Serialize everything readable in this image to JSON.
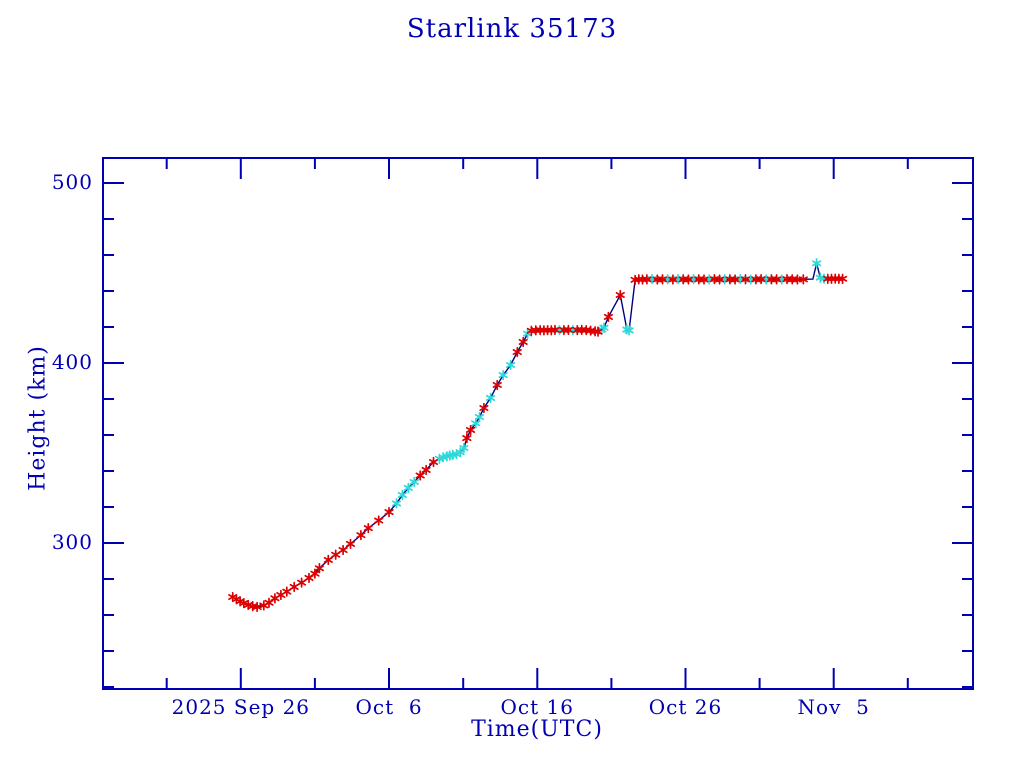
{
  "chart_data": {
    "type": "line",
    "title": "Starlink 35173",
    "xlabel": "Time(UTC)",
    "ylabel": "Height (km)",
    "grid": false,
    "legend": "none",
    "x_axis": {
      "unit": "days after 2025 Sep 26 (UTC)",
      "lim": [
        -9.3,
        49.4
      ],
      "major_ticks": [
        {
          "t": 0,
          "label": "2025 Sep 26"
        },
        {
          "t": 10,
          "label": "Oct  6"
        },
        {
          "t": 20,
          "label": "Oct 16"
        },
        {
          "t": 30,
          "label": "Oct 26"
        },
        {
          "t": 40,
          "label": "Nov  5"
        }
      ],
      "minor_ticks": [
        -5,
        5,
        15,
        25,
        35,
        45
      ]
    },
    "y_axis": {
      "unit": "km",
      "lim": [
        218.9,
        513.9
      ],
      "major_ticks": [
        {
          "v": 300,
          "label": "300"
        },
        {
          "v": 400,
          "label": "400"
        },
        {
          "v": 500,
          "label": "500"
        }
      ],
      "minor_ticks": [
        220,
        240,
        260,
        280,
        320,
        340,
        360,
        380,
        420,
        440,
        460,
        480
      ]
    },
    "style": {
      "axis_color": "#0000b2",
      "text_color": "#0000b2",
      "line_color": "#000080",
      "marker_colors": {
        "r": "#dd0000",
        "c": "#2fd8d8"
      },
      "marker": "asterisk",
      "background": "#ffffff"
    },
    "series": [
      {
        "name": "height",
        "points": [
          [
            -0.55,
            270.0,
            "r"
          ],
          [
            -0.3,
            268.8,
            "r"
          ],
          [
            -0.05,
            267.6,
            "r"
          ],
          [
            0.2,
            266.6,
            "r"
          ],
          [
            0.5,
            265.6,
            "r"
          ],
          [
            0.8,
            264.9,
            "r"
          ],
          [
            1.1,
            264.5,
            "r"
          ],
          [
            1.55,
            265.3,
            "r"
          ],
          [
            1.9,
            266.8,
            "r"
          ],
          [
            2.3,
            269.3,
            "r"
          ],
          [
            2.7,
            271.1,
            "r"
          ],
          [
            3.1,
            273.0,
            "r"
          ],
          [
            3.6,
            275.6,
            "r"
          ],
          [
            4.1,
            278.0,
            "r"
          ],
          [
            4.6,
            280.6,
            "r"
          ],
          [
            5.0,
            283.0,
            "r"
          ],
          [
            5.3,
            286.0,
            "r"
          ],
          [
            5.9,
            290.6,
            "r"
          ],
          [
            6.4,
            293.5,
            "r"
          ],
          [
            6.9,
            296.1,
            "r"
          ],
          [
            7.4,
            299.5,
            "r"
          ],
          [
            8.1,
            304.4,
            "r"
          ],
          [
            8.6,
            308.3,
            "r"
          ],
          [
            9.3,
            312.5,
            "r"
          ],
          [
            10.0,
            317.2,
            "r"
          ],
          [
            10.5,
            322.0,
            "c"
          ],
          [
            10.9,
            326.7,
            "c"
          ],
          [
            11.3,
            330.6,
            "c"
          ],
          [
            11.7,
            333.9,
            "c"
          ],
          [
            12.1,
            337.5,
            "r"
          ],
          [
            12.5,
            340.6,
            "r"
          ],
          [
            13.0,
            345.0,
            "r"
          ],
          [
            13.4,
            346.8,
            "c"
          ],
          [
            13.65,
            347.6,
            "c"
          ],
          [
            13.9,
            348.2,
            "c"
          ],
          [
            14.1,
            348.6,
            "c"
          ],
          [
            14.3,
            349.0,
            "c"
          ],
          [
            14.55,
            349.4,
            "c"
          ],
          [
            14.8,
            350.4,
            "c"
          ],
          [
            15.05,
            352.8,
            "c"
          ],
          [
            15.25,
            358.3,
            "r"
          ],
          [
            15.5,
            362.8,
            "r"
          ],
          [
            15.85,
            366.5,
            "c"
          ],
          [
            16.1,
            370.0,
            "c"
          ],
          [
            16.4,
            375.0,
            "r"
          ],
          [
            16.85,
            380.6,
            "c"
          ],
          [
            17.3,
            387.8,
            "r"
          ],
          [
            17.7,
            393.3,
            "c"
          ],
          [
            18.2,
            398.9,
            "c"
          ],
          [
            18.65,
            406.1,
            "r"
          ],
          [
            19.05,
            411.7,
            "r"
          ],
          [
            19.35,
            416.3,
            "c"
          ],
          [
            19.6,
            417.9,
            "r"
          ],
          [
            19.9,
            418.2,
            "r"
          ],
          [
            20.2,
            418.3,
            "r"
          ],
          [
            20.45,
            418.2,
            "r"
          ],
          [
            20.7,
            418.3,
            "r"
          ],
          [
            20.95,
            418.2,
            "r"
          ],
          [
            21.2,
            418.4,
            "r"
          ],
          [
            21.5,
            418.3,
            "c"
          ],
          [
            21.8,
            418.3,
            "r"
          ],
          [
            22.1,
            418.4,
            "r"
          ],
          [
            22.4,
            418.3,
            "c"
          ],
          [
            22.7,
            418.3,
            "r"
          ],
          [
            23.0,
            418.4,
            "r"
          ],
          [
            23.3,
            418.3,
            "r"
          ],
          [
            23.6,
            418.0,
            "r"
          ],
          [
            23.9,
            417.6,
            "r"
          ],
          [
            24.1,
            417.4,
            "r"
          ],
          [
            24.35,
            418.6,
            "c"
          ],
          [
            24.5,
            419.6,
            "c"
          ],
          [
            24.8,
            425.6,
            "r"
          ],
          [
            25.6,
            437.8,
            "r"
          ],
          [
            26.05,
            418.6,
            "c"
          ],
          [
            26.2,
            418.1,
            "c"
          ],
          [
            26.6,
            446.2,
            "r"
          ],
          [
            26.85,
            446.5,
            "r"
          ],
          [
            27.1,
            446.4,
            "r"
          ],
          [
            27.4,
            446.5,
            "r"
          ],
          [
            27.75,
            446.6,
            "c"
          ],
          [
            28.1,
            446.4,
            "r"
          ],
          [
            28.45,
            446.5,
            "r"
          ],
          [
            28.8,
            446.5,
            "c"
          ],
          [
            29.15,
            446.4,
            "r"
          ],
          [
            29.5,
            446.6,
            "c"
          ],
          [
            29.85,
            446.5,
            "r"
          ],
          [
            30.2,
            446.4,
            "r"
          ],
          [
            30.55,
            446.6,
            "c"
          ],
          [
            30.9,
            446.5,
            "r"
          ],
          [
            31.25,
            446.4,
            "r"
          ],
          [
            31.6,
            446.5,
            "c"
          ],
          [
            31.95,
            446.6,
            "r"
          ],
          [
            32.3,
            446.4,
            "r"
          ],
          [
            32.65,
            446.5,
            "c"
          ],
          [
            33.0,
            446.5,
            "r"
          ],
          [
            33.35,
            446.4,
            "r"
          ],
          [
            33.7,
            446.6,
            "c"
          ],
          [
            34.05,
            446.5,
            "r"
          ],
          [
            34.4,
            446.4,
            "c"
          ],
          [
            34.75,
            446.5,
            "r"
          ],
          [
            35.1,
            446.6,
            "r"
          ],
          [
            35.45,
            446.4,
            "c"
          ],
          [
            35.8,
            446.5,
            "r"
          ],
          [
            36.15,
            446.5,
            "r"
          ],
          [
            36.5,
            446.4,
            "c"
          ],
          [
            36.85,
            446.6,
            "r"
          ],
          [
            37.2,
            446.5,
            "r"
          ],
          [
            37.55,
            446.4,
            "r"
          ],
          [
            37.95,
            446.5,
            "r"
          ],
          [
            38.6,
            446.6,
            "n"
          ],
          [
            38.85,
            455.4,
            "c"
          ],
          [
            39.1,
            447.4,
            "c"
          ],
          [
            39.35,
            446.9,
            "c"
          ],
          [
            39.6,
            446.8,
            "r"
          ],
          [
            39.85,
            446.8,
            "r"
          ],
          [
            40.1,
            446.9,
            "r"
          ],
          [
            40.35,
            446.8,
            "r"
          ],
          [
            40.6,
            446.8,
            "r"
          ]
        ]
      }
    ]
  }
}
